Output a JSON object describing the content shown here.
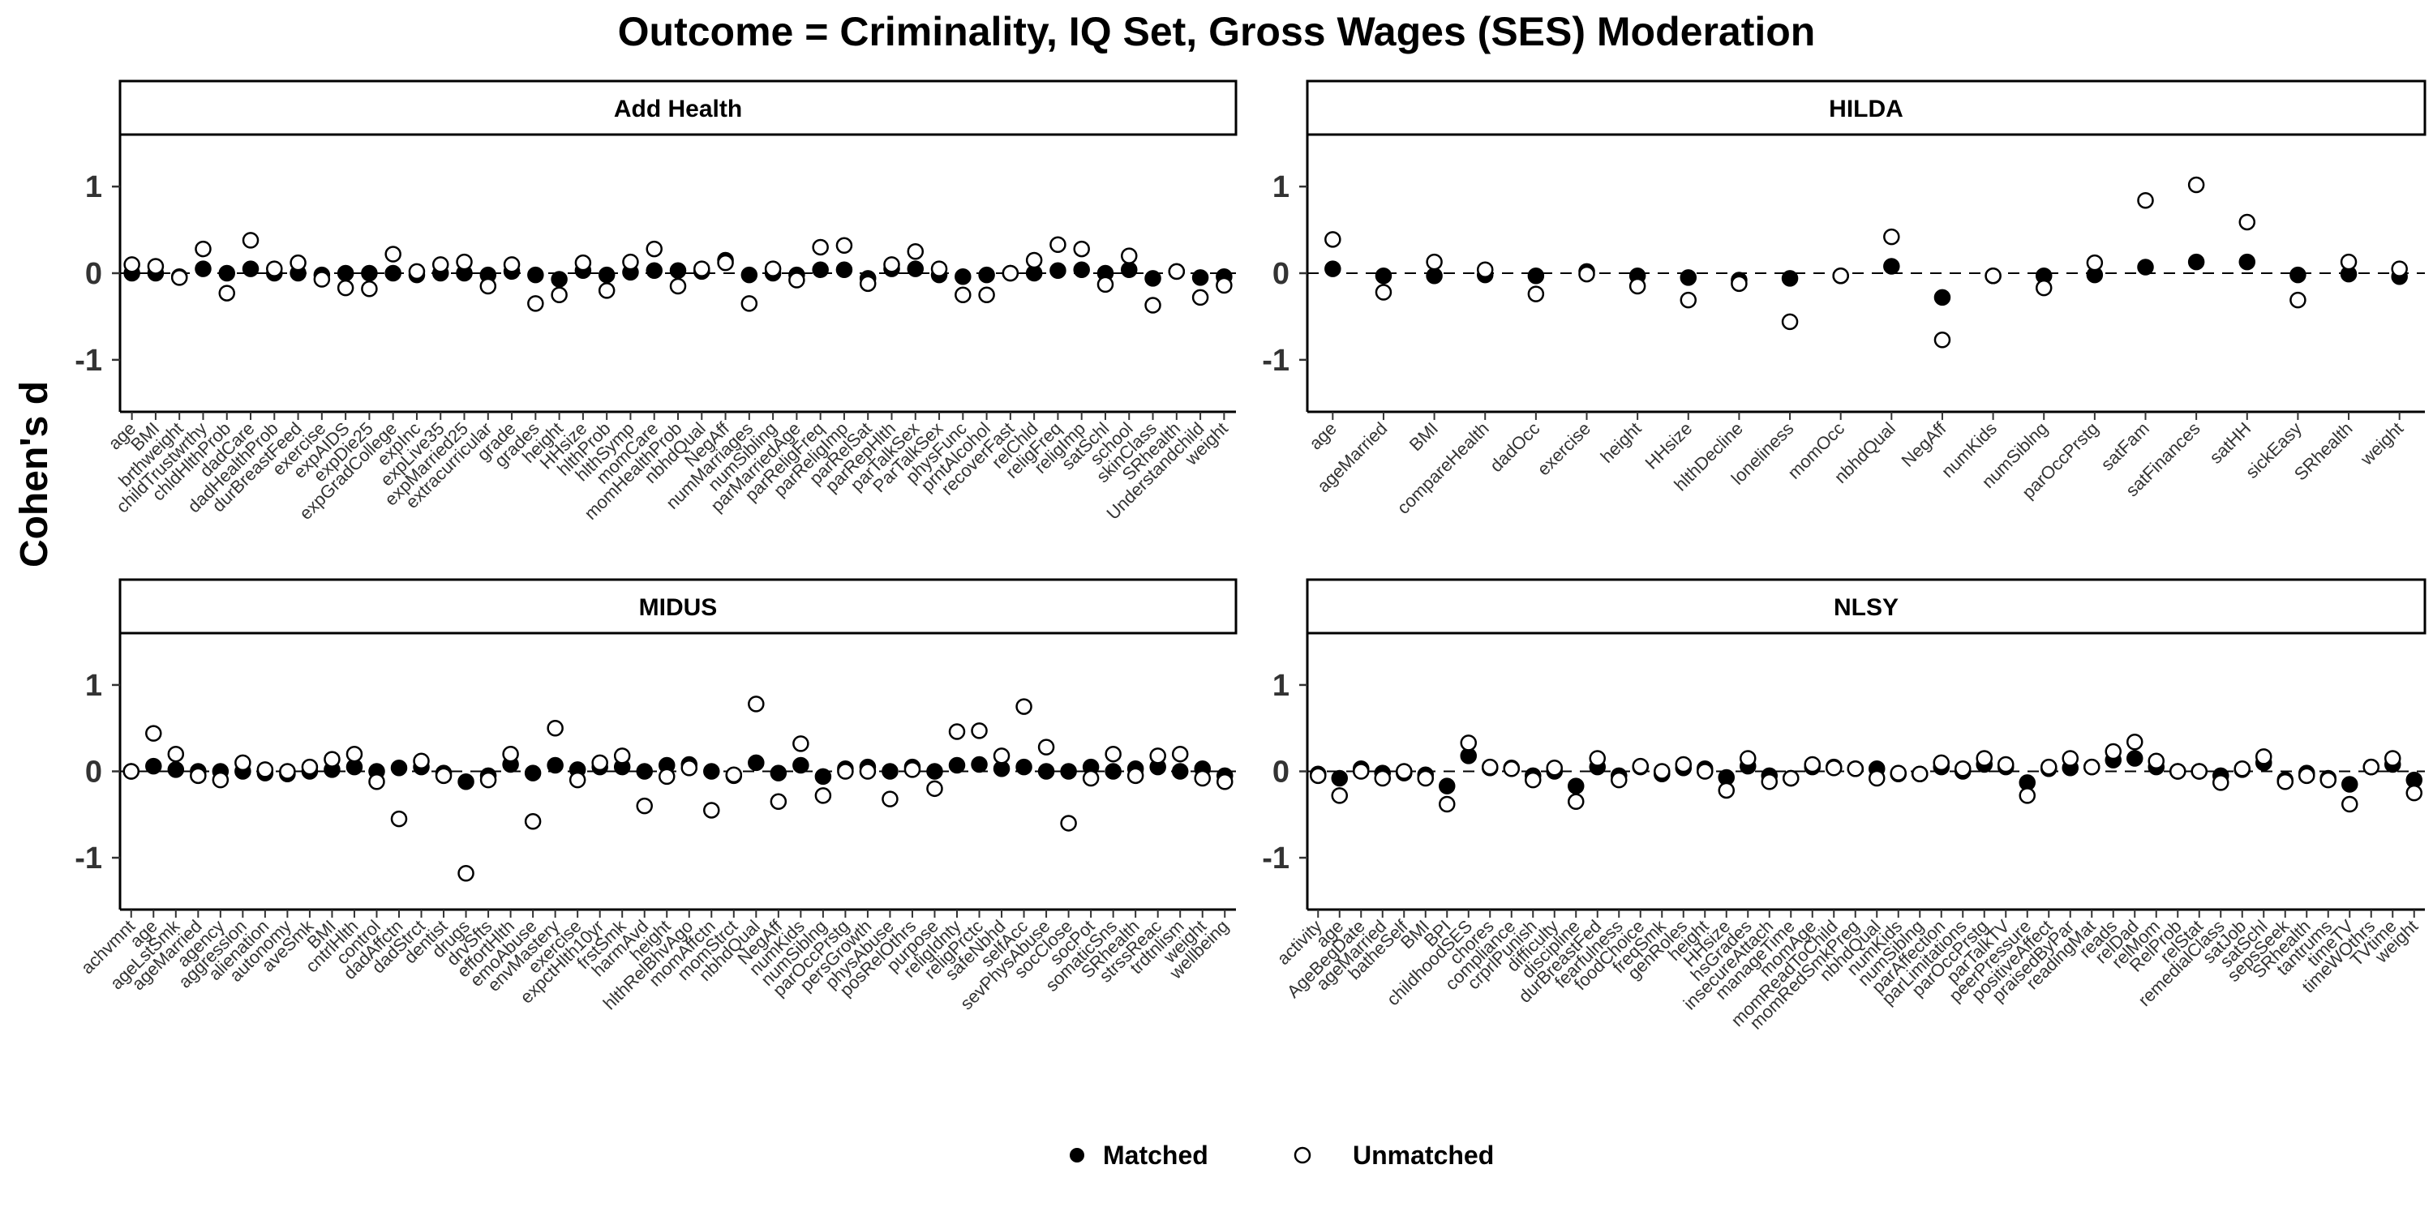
{
  "title": "Outcome = Criminality, IQ Set, Gross Wages (SES) Moderation",
  "y_axis_label": "Cohen's d",
  "legend": {
    "matched": "Matched",
    "unmatched": "Unmatched"
  },
  "chart_data": {
    "type": "scatter",
    "facets": [
      "Add Health",
      "HILDA",
      "MIDUS",
      "NLSY"
    ],
    "ylim": [
      -1.6,
      1.6
    ],
    "yticks": [
      "1",
      "0",
      "-1"
    ],
    "reference_line": 0,
    "panels": [
      {
        "name": "Add Health",
        "categories": [
          "age",
          "BMI",
          "brthweight",
          "childTrustwrthy",
          "chldHlthProb",
          "dadCare",
          "dadHealthProb",
          "durBreastFeed",
          "exercise",
          "expAIDS",
          "expDie25",
          "expGradCollege",
          "expInc",
          "expLive35",
          "expMarried25",
          "extracurricular",
          "grade",
          "grades",
          "height",
          "HHsize",
          "hlthProb",
          "hlthSymp",
          "momCare",
          "momHealthProb",
          "nbhdQual",
          "NegAff",
          "numMarriages",
          "numSibling",
          "parMarriedAge",
          "parReligFreq",
          "parReligImp",
          "parRelSat",
          "parRepHlth",
          "parTalkSex",
          "ParTalkSex",
          "physFunc",
          "prntAlcohol",
          "recoverFast",
          "relChld",
          "religFreq",
          "religImp",
          "satSchl",
          "school",
          "skinClass",
          "SRhealth",
          "Understandchild",
          "weight"
        ],
        "series": [
          {
            "name": "Matched",
            "values": [
              0.0,
              0.0,
              -0.04,
              0.05,
              0.0,
              0.05,
              0.0,
              0.0,
              -0.02,
              0.0,
              0.0,
              0.0,
              -0.02,
              0.0,
              0.0,
              -0.02,
              0.02,
              -0.02,
              -0.07,
              0.03,
              -0.02,
              0.01,
              0.03,
              0.03,
              0.02,
              0.15,
              -0.02,
              0.0,
              -0.02,
              0.04,
              0.04,
              -0.06,
              0.05,
              0.05,
              -0.02,
              -0.04,
              -0.02,
              0.0,
              0.0,
              0.03,
              0.04,
              0.0,
              0.04,
              -0.06,
              0.02,
              -0.05,
              -0.04
            ]
          },
          {
            "name": "Unmatched",
            "values": [
              0.1,
              0.08,
              -0.05,
              0.28,
              -0.23,
              0.38,
              0.05,
              0.12,
              -0.07,
              -0.17,
              -0.18,
              0.22,
              0.02,
              0.1,
              0.13,
              -0.15,
              0.1,
              -0.35,
              -0.25,
              0.12,
              -0.2,
              0.13,
              0.28,
              -0.15,
              0.05,
              0.12,
              -0.35,
              0.05,
              -0.08,
              0.3,
              0.32,
              -0.12,
              0.1,
              0.25,
              0.05,
              -0.25,
              -0.25,
              0.0,
              0.15,
              0.33,
              0.28,
              -0.13,
              0.2,
              -0.37,
              0.02,
              -0.28,
              -0.14
            ]
          }
        ]
      },
      {
        "name": "HILDA",
        "categories": [
          "age",
          "ageMarried",
          "BMI",
          "compareHealth",
          "dadOcc",
          "exercise",
          "height",
          "HHsize",
          "hlthDecline",
          "loneliness",
          "momOcc",
          "nbhdQual",
          "NegAff",
          "numKids",
          "numSiblng",
          "parOccPrstg",
          "satFam",
          "satFinances",
          "satHH",
          "sickEasy",
          "SRhealth",
          "weight"
        ],
        "series": [
          {
            "name": "Matched",
            "values": [
              0.05,
              -0.03,
              -0.03,
              -0.02,
              -0.03,
              0.02,
              -0.03,
              -0.05,
              -0.08,
              -0.06,
              -0.03,
              0.08,
              -0.28,
              -0.03,
              -0.03,
              -0.02,
              0.07,
              0.13,
              0.13,
              -0.02,
              -0.01,
              -0.04
            ]
          },
          {
            "name": "Unmatched",
            "values": [
              0.39,
              -0.22,
              0.13,
              0.04,
              -0.24,
              -0.01,
              -0.15,
              -0.31,
              -0.12,
              -0.56,
              -0.03,
              0.42,
              -0.77,
              -0.03,
              -0.17,
              0.12,
              0.84,
              1.02,
              0.59,
              -0.31,
              0.13,
              0.05
            ]
          }
        ]
      },
      {
        "name": "MIDUS",
        "categories": [
          "achvmnt",
          "age",
          "ageLstSmk",
          "ageMarried",
          "agency",
          "aggression",
          "alienation",
          "autonomy",
          "aveSmk",
          "BMI",
          "cntrlHlth",
          "control",
          "dadAffctn",
          "dadStrct",
          "dentist",
          "drugs",
          "drvSfts",
          "effortHlth",
          "emoAbuse",
          "envMastery",
          "exercise",
          "expctHlth10yr",
          "frstSmk",
          "harmAvd",
          "height",
          "hlthRelBhvAgo",
          "momAffctn",
          "momStrct",
          "nbhdQual",
          "NegAff",
          "numKids",
          "numSiblng",
          "parOccPrstg",
          "persGrowth",
          "physAbuse",
          "posRelOthrs",
          "purpose",
          "religIdnty",
          "religPrctc",
          "safeNbhd",
          "selfAcc",
          "sevPhysAbuse",
          "socClose",
          "socPot",
          "somaticSns",
          "SRhealth",
          "strssReac",
          "trdtnlism",
          "weight",
          "wellbeing"
        ],
        "series": [
          {
            "name": "Matched",
            "values": [
              0.0,
              0.06,
              0.02,
              0.0,
              0.0,
              0.0,
              -0.02,
              -0.03,
              0.0,
              0.02,
              0.05,
              0.0,
              0.04,
              0.05,
              -0.02,
              -0.12,
              -0.05,
              0.08,
              -0.02,
              0.07,
              0.02,
              0.05,
              0.05,
              0.0,
              0.07,
              0.08,
              0.0,
              -0.05,
              0.1,
              -0.02,
              0.07,
              -0.06,
              0.03,
              0.05,
              0.0,
              0.05,
              0.0,
              0.07,
              0.08,
              0.03,
              0.05,
              0.0,
              0.0,
              0.05,
              0.0,
              0.03,
              0.05,
              0.0,
              0.03,
              -0.05
            ]
          },
          {
            "name": "Unmatched",
            "values": [
              0.0,
              0.44,
              0.2,
              -0.05,
              -0.1,
              0.1,
              0.02,
              0.0,
              0.05,
              0.14,
              0.2,
              -0.12,
              -0.55,
              0.12,
              -0.05,
              -1.18,
              -0.1,
              0.2,
              -0.58,
              0.5,
              -0.1,
              0.1,
              0.18,
              -0.4,
              -0.06,
              0.04,
              -0.45,
              -0.04,
              0.78,
              -0.35,
              0.32,
              -0.28,
              0.0,
              0.0,
              -0.32,
              0.02,
              -0.2,
              0.46,
              0.47,
              0.18,
              0.75,
              0.28,
              -0.6,
              -0.08,
              0.2,
              -0.05,
              0.18,
              0.2,
              -0.08,
              -0.12
            ]
          }
        ]
      },
      {
        "name": "NLSY",
        "categories": [
          "activity",
          "age",
          "AgeBegDate",
          "ageMarried",
          "batheSelf",
          "BMI",
          "BPI",
          "childhoodSES",
          "chores",
          "compliance",
          "crprlPunish",
          "difficulty",
          "discipline",
          "durBreastFed",
          "fearfulness",
          "foodChoice",
          "freqSmk",
          "genRoles",
          "height",
          "HHsize",
          "hsGrades",
          "insecureAttach",
          "manageTime",
          "momAge",
          "momReadToChild",
          "momRedSmkPreg",
          "nbhdQual",
          "numKids",
          "numSiblng",
          "parAffection",
          "parLimitations",
          "parOccPrstg",
          "parTalkTV",
          "peerPressure",
          "positiveAffect",
          "praisedByPar",
          "readingMat",
          "reads",
          "relDad",
          "relMom",
          "RelProb",
          "relStat",
          "remedialClass",
          "satJob",
          "satSchl",
          "sepsSeek",
          "SRhealth",
          "tantrums",
          "timeTV",
          "timeWOthrs",
          "TVtime",
          "weight"
        ],
        "series": [
          {
            "name": "Matched",
            "values": [
              -0.03,
              -0.08,
              0.03,
              -0.02,
              -0.02,
              -0.04,
              -0.17,
              0.18,
              0.04,
              0.04,
              -0.05,
              0.0,
              -0.17,
              0.05,
              -0.05,
              0.05,
              -0.03,
              0.04,
              0.03,
              -0.07,
              0.06,
              -0.05,
              -0.08,
              0.05,
              0.05,
              0.03,
              0.03,
              -0.03,
              -0.03,
              0.05,
              0.0,
              0.08,
              0.05,
              -0.13,
              0.03,
              0.04,
              0.05,
              0.13,
              0.15,
              0.05,
              0.0,
              0.0,
              -0.05,
              0.02,
              0.1,
              -0.1,
              -0.02,
              -0.08,
              -0.15,
              0.05,
              0.08,
              -0.1
            ]
          },
          {
            "name": "Unmatched",
            "values": [
              -0.05,
              -0.28,
              0.0,
              -0.08,
              0.0,
              -0.08,
              -0.38,
              0.33,
              0.05,
              0.03,
              -0.1,
              0.04,
              -0.35,
              0.15,
              -0.1,
              0.06,
              0.0,
              0.08,
              0.0,
              -0.22,
              0.15,
              -0.12,
              -0.08,
              0.08,
              0.04,
              0.03,
              -0.08,
              -0.02,
              -0.03,
              0.1,
              0.03,
              0.15,
              0.08,
              -0.28,
              0.05,
              0.15,
              0.05,
              0.23,
              0.34,
              0.12,
              0.0,
              0.0,
              -0.13,
              0.03,
              0.17,
              -0.12,
              -0.05,
              -0.1,
              -0.38,
              0.05,
              0.15,
              -0.25
            ]
          }
        ]
      }
    ]
  }
}
